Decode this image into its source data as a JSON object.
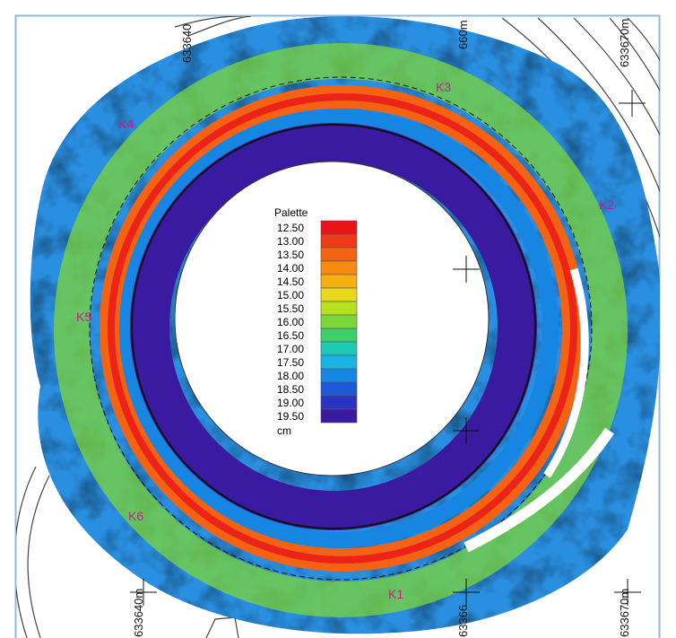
{
  "map": {
    "legend": {
      "title": "Palette",
      "unit": "cm",
      "entries": [
        {
          "label": "12.50",
          "color": "#e8141a"
        },
        {
          "label": "13.00",
          "color": "#ee3a16"
        },
        {
          "label": "13.50",
          "color": "#f46214"
        },
        {
          "label": "14.00",
          "color": "#f68a12"
        },
        {
          "label": "14.50",
          "color": "#f6b013"
        },
        {
          "label": "15.00",
          "color": "#e6d81a"
        },
        {
          "label": "15.50",
          "color": "#b8e022"
        },
        {
          "label": "16.00",
          "color": "#7cd63a"
        },
        {
          "label": "16.50",
          "color": "#3fcf6a"
        },
        {
          "label": "17.00",
          "color": "#1ec8b4"
        },
        {
          "label": "17.50",
          "color": "#18b4e6"
        },
        {
          "label": "18.00",
          "color": "#1686e2"
        },
        {
          "label": "18.50",
          "color": "#1a5ad6"
        },
        {
          "label": "19.00",
          "color": "#2a34c2"
        },
        {
          "label": "19.50",
          "color": "#3a1aa0"
        }
      ]
    },
    "top_coordinates": [
      "633640",
      "660m",
      "633670m"
    ],
    "bottom_coordinates": [
      "633640m",
      "63366",
      "633670m"
    ],
    "points": [
      "K1",
      "K2",
      "K3",
      "K4",
      "K5",
      "K6"
    ]
  }
}
